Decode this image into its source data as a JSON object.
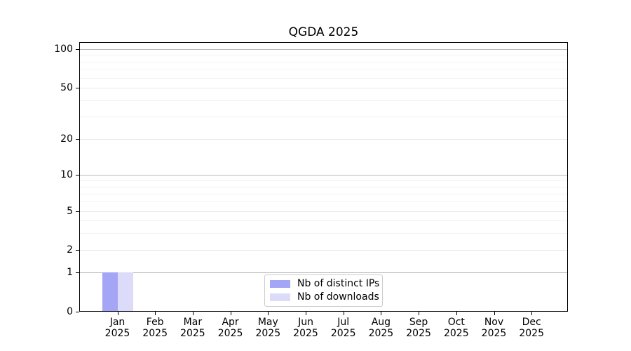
{
  "chart_data": {
    "type": "bar",
    "title": "QGDA 2025",
    "categories": [
      "Jan",
      "Feb",
      "Mar",
      "Apr",
      "May",
      "Jun",
      "Jul",
      "Aug",
      "Sep",
      "Oct",
      "Nov",
      "Dec"
    ],
    "x_year": "2025",
    "series": [
      {
        "name": "Nb of distinct IPs",
        "color": "#a5a5f5",
        "values": [
          1,
          0,
          0,
          0,
          0,
          0,
          0,
          0,
          0,
          0,
          0,
          0
        ]
      },
      {
        "name": "Nb of downloads",
        "color": "#dcdcfa",
        "values": [
          1,
          0,
          0,
          0,
          0,
          0,
          0,
          0,
          0,
          0,
          0,
          0
        ]
      }
    ],
    "yticks": [
      0,
      1,
      2,
      5,
      10,
      20,
      50,
      100
    ],
    "ylim": [
      0,
      115
    ],
    "yscale": "symlog",
    "grid": "horizontal",
    "legend_position": "lower-center",
    "colors": {
      "background": "#ffffff",
      "axis": "#000000",
      "grid_pow10": "#b9b9b9",
      "grid_major": "#e7e7e7",
      "grid_minor": "#f2f2f2",
      "legend_border": "#cccccc"
    }
  }
}
